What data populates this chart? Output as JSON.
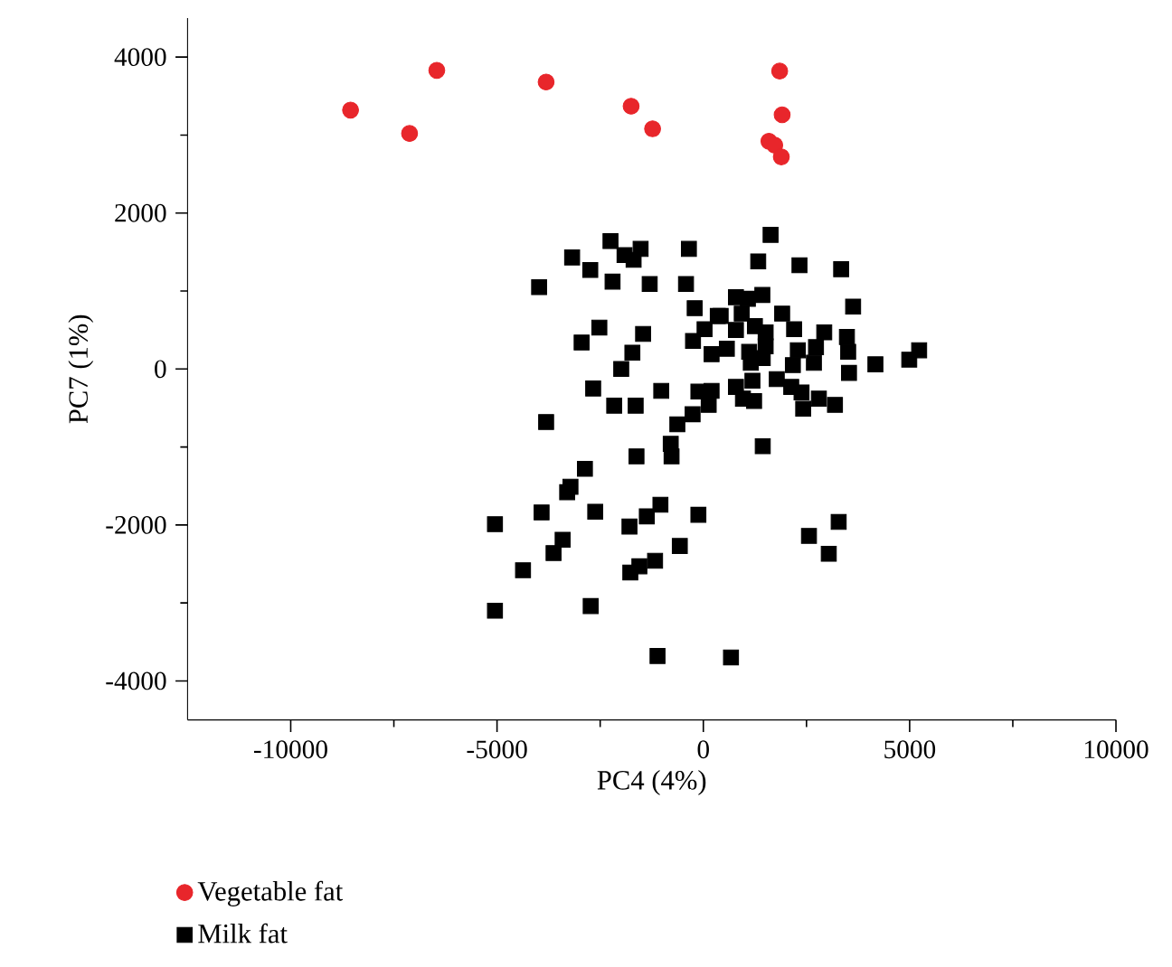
{
  "chart_data": {
    "type": "scatter",
    "xlabel": "PC4 (4%)",
    "ylabel": "PC7 (1%)",
    "xlim": [
      -12500,
      10000
    ],
    "ylim": [
      -4500,
      4500
    ],
    "xticks": [
      -10000,
      -5000,
      0,
      5000,
      10000
    ],
    "yticks": [
      -4000,
      -2000,
      0,
      2000,
      4000
    ],
    "grid": false,
    "legend": "bottom left",
    "series": [
      {
        "name": "Vegetable fat",
        "color": "#e8262b",
        "marker": "circle",
        "x": [
          -8550,
          -7120,
          -6460,
          -3810,
          -1750,
          -1230,
          1850,
          1910,
          1590,
          1730,
          1890
        ],
        "values": [
          3320,
          3020,
          3830,
          3680,
          3370,
          3080,
          3820,
          3260,
          2920,
          2870,
          2720
        ]
      },
      {
        "name": "Milk fat",
        "color": "#000000",
        "marker": "square",
        "x": [
          -2250,
          -3180,
          -2740,
          -1910,
          -1690,
          -1520,
          -350,
          -3980,
          -2200,
          -1300,
          -420,
          -210,
          350,
          30,
          -250,
          200,
          -2520,
          -2950,
          -1460,
          -1720,
          -1990,
          -2670,
          -2160,
          -1640,
          -1020,
          -120,
          200,
          130,
          -260,
          -630,
          -3810,
          -790,
          -770,
          -1620,
          -2870,
          -3220,
          1630,
          1330,
          2330,
          3340,
          790,
          1080,
          1430,
          3630,
          420,
          930,
          1910,
          790,
          1250,
          1510,
          2200,
          2930,
          570,
          1110,
          1510,
          2290,
          2730,
          3480,
          3510,
          1150,
          1440,
          2170,
          2680,
          4170,
          4990,
          5230,
          3530,
          790,
          1190,
          1780,
          960,
          1230,
          2130,
          2380,
          2800,
          3190,
          2420,
          1440,
          -3300,
          -5050,
          -3920,
          -2620,
          -3410,
          -3630,
          -4370,
          -5050,
          -2730,
          -1790,
          -1370,
          -1040,
          -120,
          -570,
          -1170,
          -1550,
          -1770,
          -1110,
          670,
          2560,
          3040,
          3280
        ],
        "values": [
          1640,
          1430,
          1270,
          1460,
          1400,
          1540,
          1540,
          1050,
          1120,
          1090,
          1090,
          780,
          680,
          510,
          360,
          190,
          530,
          340,
          450,
          210,
          0,
          -250,
          -470,
          -470,
          -280,
          -290,
          -280,
          -460,
          -580,
          -710,
          -680,
          -960,
          -1120,
          -1120,
          -1280,
          -1510,
          1720,
          1380,
          1330,
          1280,
          920,
          900,
          950,
          800,
          680,
          710,
          710,
          500,
          550,
          470,
          510,
          470,
          260,
          220,
          290,
          240,
          280,
          410,
          220,
          80,
          140,
          50,
          80,
          60,
          120,
          240,
          -50,
          -230,
          -150,
          -130,
          -380,
          -410,
          -230,
          -300,
          -380,
          -460,
          -510,
          -990,
          -1580,
          -1990,
          -1840,
          -1830,
          -2190,
          -2360,
          -2580,
          -3100,
          -3040,
          -2020,
          -1890,
          -1740,
          -1870,
          -2270,
          -2460,
          -2530,
          -2610,
          -3680,
          -3700,
          -2140,
          -2370,
          -1960
        ]
      }
    ]
  }
}
